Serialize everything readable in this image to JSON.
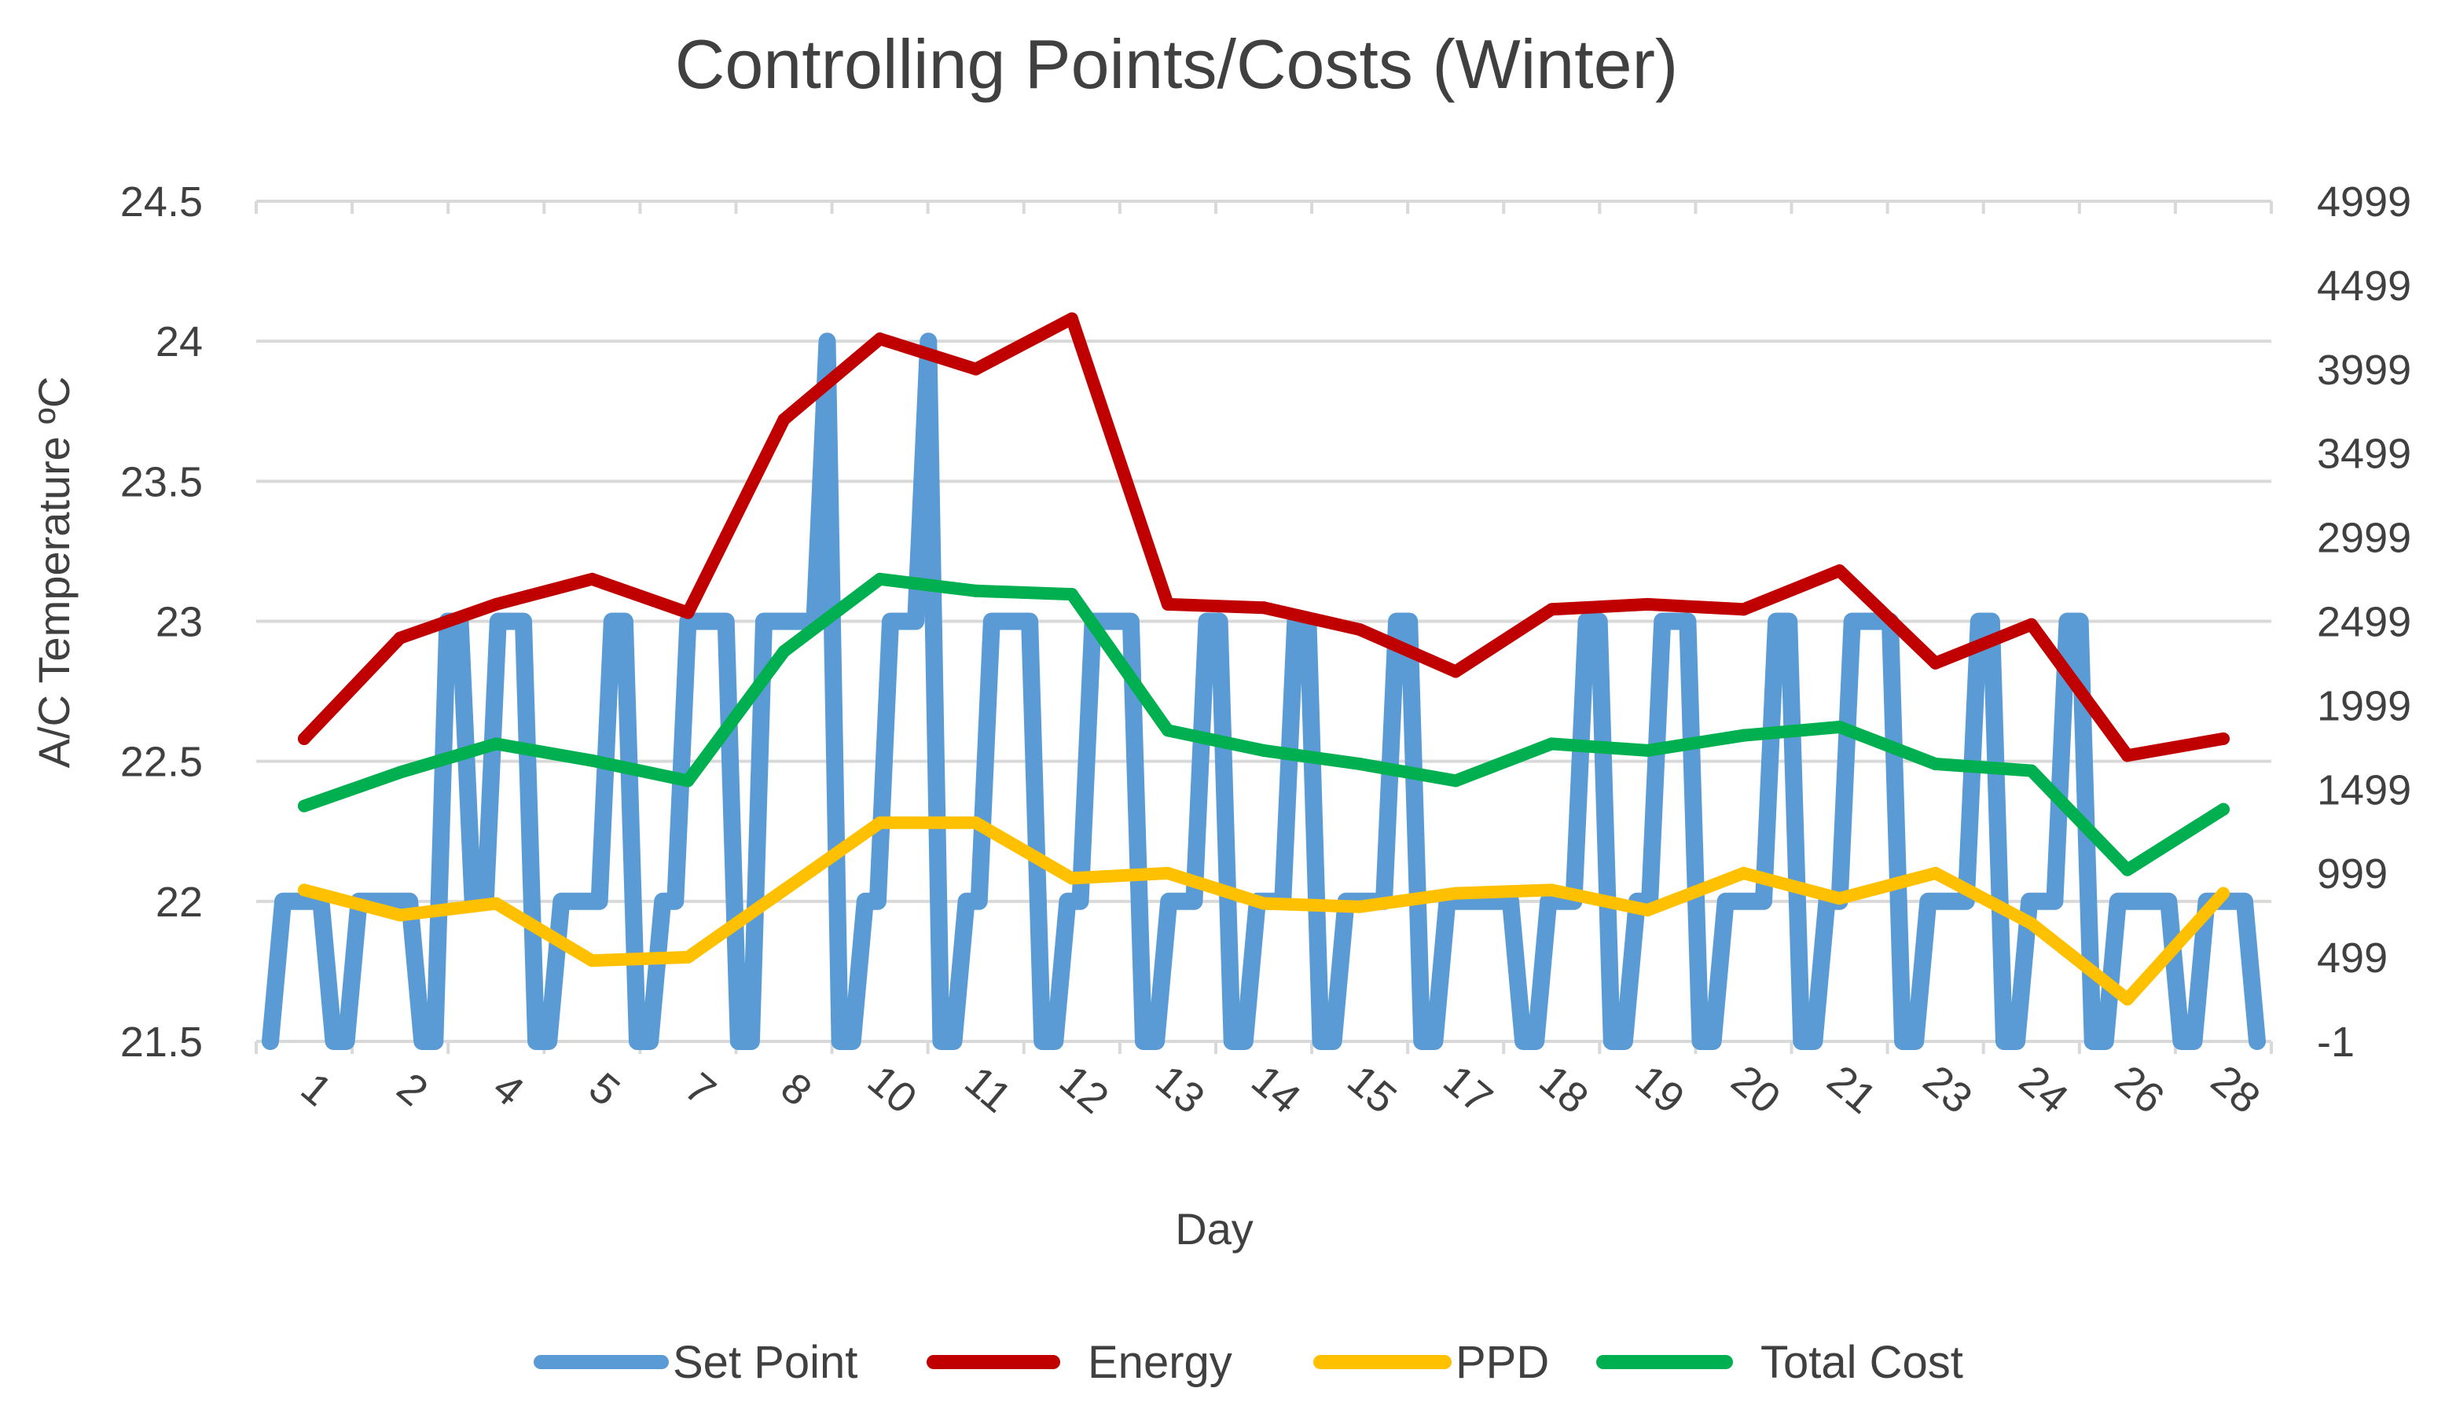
{
  "chart_data": {
    "type": "line",
    "title": "Controlling Points/Costs (Winter)",
    "xlabel": "Day",
    "ylabel": "A/C Temperature ºC",
    "categories": [
      "1",
      "2",
      "4",
      "5",
      "7",
      "8",
      "10",
      "11",
      "12",
      "13",
      "14",
      "15",
      "17",
      "18",
      "19",
      "20",
      "21",
      "23",
      "24",
      "26",
      "28"
    ],
    "y_left": {
      "min": 21.5,
      "max": 24.5,
      "ticks": [
        "21.5",
        "22",
        "22.5",
        "23",
        "23.5",
        "24",
        "24.5"
      ]
    },
    "y_right": {
      "min": -1,
      "max": 4999,
      "ticks": [
        "-1",
        "499",
        "999",
        "1499",
        "1999",
        "2499",
        "2999",
        "3499",
        "3999",
        "4499",
        "4999"
      ]
    },
    "grid": true,
    "legend_position": "bottom",
    "series": [
      {
        "name": "Set Point",
        "axis": "left",
        "color": "#5B9BD5",
        "step_values": [
          21.5,
          22,
          22,
          22,
          22,
          21.5,
          21.5,
          22,
          22,
          22,
          22,
          22,
          21.5,
          21.5,
          23,
          23,
          22,
          22,
          23,
          23,
          23,
          21.5,
          21.5,
          22,
          22,
          22,
          22,
          23,
          23,
          21.5,
          21.5,
          22,
          22,
          23,
          23,
          23,
          23,
          21.5,
          21.5,
          23,
          23,
          23,
          23,
          23,
          24,
          21.5,
          21.5,
          22,
          22,
          23,
          23,
          23,
          24,
          21.5,
          21.5,
          22,
          22,
          23,
          23,
          23,
          23,
          21.5,
          21.5,
          22,
          22,
          23,
          23,
          23,
          23,
          21.5,
          21.5,
          22,
          22,
          22,
          23,
          23,
          21.5,
          21.5,
          22,
          22,
          22,
          23,
          23,
          21.5,
          21.5,
          22,
          22,
          22,
          22,
          23,
          23,
          21.5,
          21.5,
          22,
          22,
          22,
          22,
          22,
          22,
          21.5,
          21.5,
          22,
          22,
          22,
          23,
          23,
          21.5,
          21.5,
          22,
          22,
          23,
          23,
          23,
          21.5,
          21.5,
          22,
          22,
          22,
          22,
          23,
          23,
          21.5,
          21.5,
          22,
          22,
          23,
          23,
          23,
          23,
          21.5,
          21.5,
          22,
          22,
          22,
          22,
          23,
          23,
          21.5,
          21.5,
          22,
          22,
          22,
          23,
          23,
          21.5,
          21.5,
          22,
          22,
          22,
          22,
          22,
          21.5,
          21.5,
          22,
          22,
          22,
          22,
          21.5
        ]
      },
      {
        "name": "Energy",
        "axis": "right",
        "color": "#C00000",
        "values": [
          1800,
          2400,
          2600,
          2750,
          2550,
          3700,
          4180,
          4000,
          4300,
          2600,
          2580,
          2450,
          2200,
          2570,
          2600,
          2570,
          2800,
          2250,
          2480,
          1700,
          1800
        ]
      },
      {
        "name": "PPD",
        "axis": "right",
        "color": "#FFC000",
        "values": [
          900,
          750,
          820,
          480,
          500,
          900,
          1300,
          1300,
          970,
          1000,
          820,
          800,
          880,
          900,
          780,
          1000,
          850,
          1000,
          700,
          250,
          880
        ]
      },
      {
        "name": "Total Cost",
        "axis": "right",
        "color": "#00B050",
        "values": [
          1400,
          1600,
          1770,
          1670,
          1550,
          2320,
          2750,
          2680,
          2660,
          1850,
          1730,
          1650,
          1550,
          1770,
          1730,
          1820,
          1870,
          1650,
          1610,
          1020,
          1380
        ]
      }
    ]
  }
}
